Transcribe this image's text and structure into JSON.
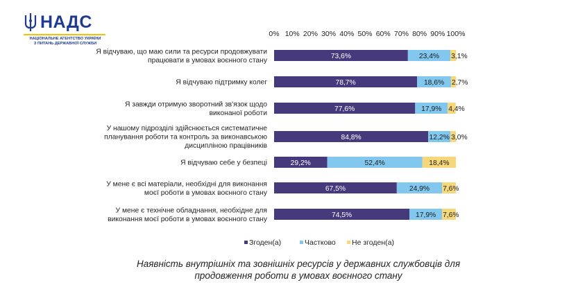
{
  "logo": {
    "title": "НАДС",
    "subtitle_line1": "НАЦІОНАЛЬНЕ АГЕНТСТВО УКРАЇНИ",
    "subtitle_line2": "З ПИТАНЬ ДЕРЖАВНОЇ СЛУЖБИ",
    "icon": "trident-emblem-icon",
    "colors": {
      "blue": "#1f3a93",
      "yellow": "#f2c200"
    }
  },
  "caption": {
    "line1": "Наявність внутрішніх та зовнішніх ресурсів у державних службовців для",
    "line2": "продовження роботи в умовах воєнного стану"
  },
  "chart_data": {
    "type": "bar",
    "orientation": "horizontal",
    "stacked": "100%",
    "xlim": [
      0,
      100
    ],
    "x_ticks": [
      "0%",
      "10%",
      "20%",
      "30%",
      "40%",
      "50%",
      "60%",
      "70%",
      "80%",
      "90%",
      "100%"
    ],
    "x_axis_position": "top",
    "grid": false,
    "legend_position": "bottom",
    "categories": [
      [
        "Я відчуваю, що маю сили та ресурси  продовжувати",
        "працювати в умовах воєнного стану"
      ],
      [
        "Я відчуваю підтримку колег"
      ],
      [
        "Я завжди отримую зворотний зв'язок щодо",
        "виконаної роботи"
      ],
      [
        "У нашому підрозділі здійснюється систематичне",
        "планування роботи та контроль за виконавською",
        "дисципліною працівників"
      ],
      [
        "Я відчуваю себе у безпеці"
      ],
      [
        "У мене є всі матеріали, необхідні для виконання",
        "моєї роботи в умовах воєнного стану"
      ],
      [
        "У мене є технічне обладнання, необхідне для",
        "виконання моєї роботи в умовах воєнного стану"
      ]
    ],
    "series": [
      {
        "name": "Згоден(а)",
        "color": "#463a7c",
        "label_color": "#ffffff",
        "values": [
          73.6,
          78.7,
          77.6,
          84.8,
          29.2,
          67.5,
          74.5
        ],
        "labels": [
          "73,6%",
          "78,7%",
          "77,6%",
          "84,8%",
          "29,2%",
          "67,5%",
          "74,5%"
        ]
      },
      {
        "name": "Частково",
        "color": "#82c8ee",
        "label_color": "#1a1a1a",
        "values": [
          23.4,
          18.6,
          17.9,
          12.2,
          52.4,
          24.9,
          17.9
        ],
        "labels": [
          "23,4%",
          "18,6%",
          "17,9%",
          "12,2%",
          "52,4%",
          "24,9%",
          "17,9%"
        ]
      },
      {
        "name": "Не згоден(а)",
        "color": "#f6d77a",
        "label_color": "#1a1a1a",
        "values": [
          3.1,
          2.7,
          4.4,
          3.0,
          18.4,
          7.6,
          7.6
        ],
        "labels": [
          "3,1%",
          "2,7%",
          "4,4%",
          "3,0%",
          "18,4%",
          "7,6%",
          "7,6%"
        ]
      }
    ]
  }
}
